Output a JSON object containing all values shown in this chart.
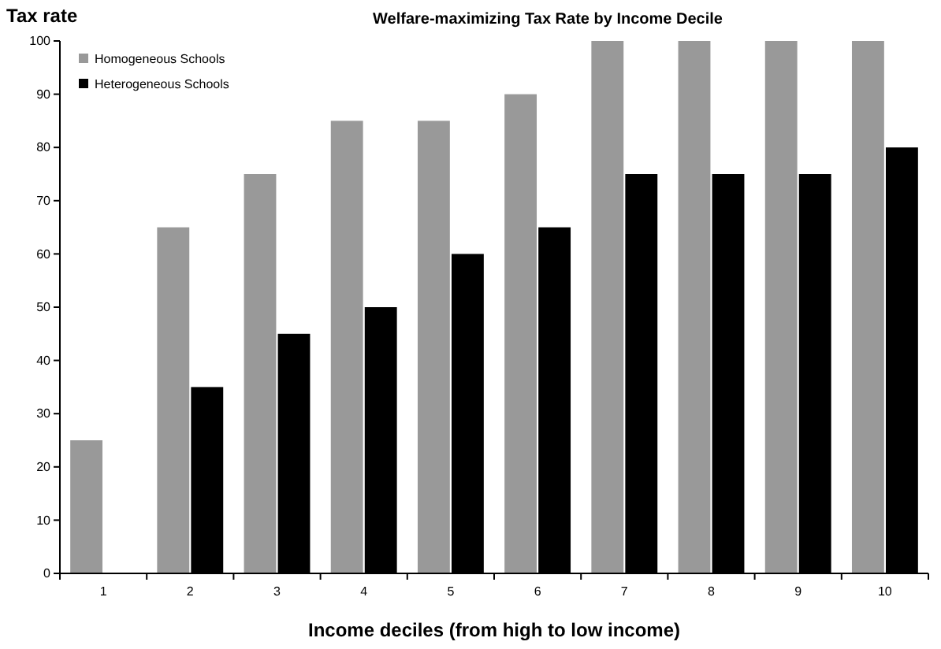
{
  "chart_data": {
    "type": "bar",
    "title": "Welfare-maximizing Tax Rate by Income Decile",
    "xlabel": "Income deciles (from high to low income)",
    "ylabel": "Tax rate",
    "categories": [
      "1",
      "2",
      "3",
      "4",
      "5",
      "6",
      "7",
      "8",
      "9",
      "10"
    ],
    "series": [
      {
        "name": "Homogeneous Schools",
        "color": "#999999",
        "values": [
          25,
          65,
          75,
          85,
          85,
          90,
          100,
          100,
          100,
          100
        ]
      },
      {
        "name": "Heterogeneous Schools",
        "color": "#000000",
        "values": [
          0,
          35,
          45,
          50,
          60,
          65,
          75,
          75,
          75,
          80
        ]
      }
    ],
    "ylim": [
      0,
      100
    ],
    "yticks": [
      0,
      10,
      20,
      30,
      40,
      50,
      60,
      70,
      80,
      90,
      100
    ],
    "grid": false,
    "legend": "top left"
  }
}
